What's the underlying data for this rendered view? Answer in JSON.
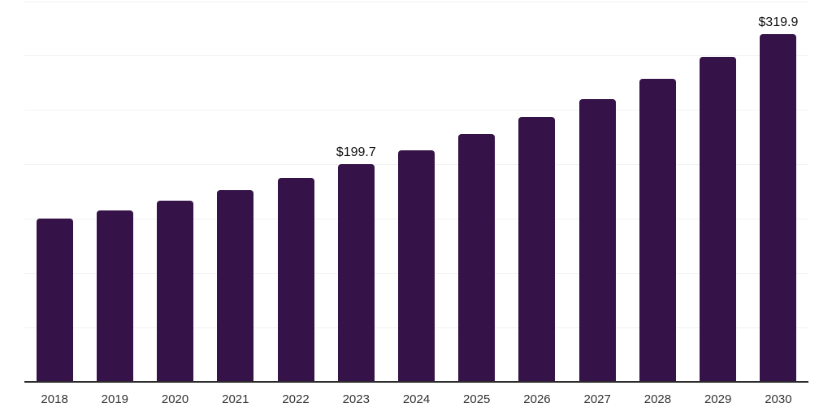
{
  "chart_data": {
    "type": "bar",
    "title": "",
    "xlabel": "",
    "ylabel": "",
    "categories": [
      "2018",
      "2019",
      "2020",
      "2021",
      "2022",
      "2023",
      "2024",
      "2025",
      "2026",
      "2027",
      "2028",
      "2029",
      "2030"
    ],
    "values": [
      149.9,
      157.2,
      166.4,
      176.4,
      187.0,
      199.7,
      213.1,
      227.6,
      243.5,
      260.2,
      278.4,
      298.4,
      319.9
    ],
    "data_labels": [
      null,
      null,
      null,
      null,
      null,
      "$199.7",
      null,
      null,
      null,
      null,
      null,
      null,
      "$319.9"
    ],
    "ylim": [
      0,
      350
    ],
    "grid_step": 50,
    "grid_on": true,
    "legend": "none",
    "y_tick_labels_shown": false
  },
  "colors": {
    "bar": "#351349",
    "gridline": "#f2f2f2",
    "axis": "#2b2b2b",
    "tick_label": "#333333",
    "data_label": "#111111",
    "background": "#ffffff"
  }
}
